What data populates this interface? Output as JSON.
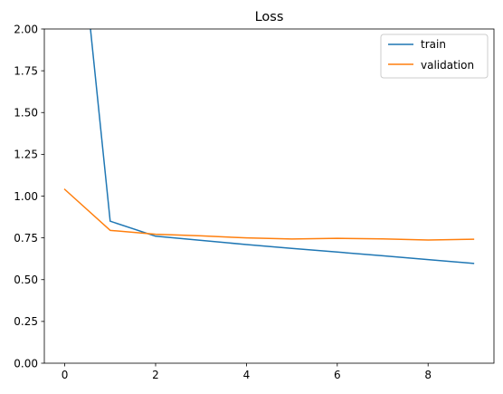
{
  "chart_data": {
    "type": "line",
    "title": "Loss",
    "xlabel": "",
    "ylabel": "",
    "x": [
      0,
      1,
      2,
      3,
      4,
      5,
      6,
      7,
      8,
      9
    ],
    "series": [
      {
        "name": "train",
        "color": "#1f77b4",
        "values": [
          3.5,
          0.85,
          0.76,
          0.735,
          0.71,
          0.687,
          0.665,
          0.643,
          0.62,
          0.597
        ]
      },
      {
        "name": "validation",
        "color": "#ff7f0e",
        "values": [
          1.04,
          0.795,
          0.772,
          0.762,
          0.75,
          0.743,
          0.747,
          0.744,
          0.737,
          0.742
        ]
      }
    ],
    "xlim": [
      -0.45,
      9.45
    ],
    "ylim": [
      0,
      2.0
    ],
    "xticks": [
      0,
      2,
      4,
      6,
      8
    ],
    "xtick_labels": [
      "0",
      "2",
      "4",
      "6",
      "8"
    ],
    "yticks": [
      0,
      0.25,
      0.5,
      0.75,
      1.0,
      1.25,
      1.5,
      1.75,
      2.0
    ],
    "ytick_labels": [
      "0.00",
      "0.25",
      "0.50",
      "0.75",
      "1.00",
      "1.25",
      "1.50",
      "1.75",
      "2.00"
    ],
    "grid": false,
    "legend_position": "top-right"
  }
}
